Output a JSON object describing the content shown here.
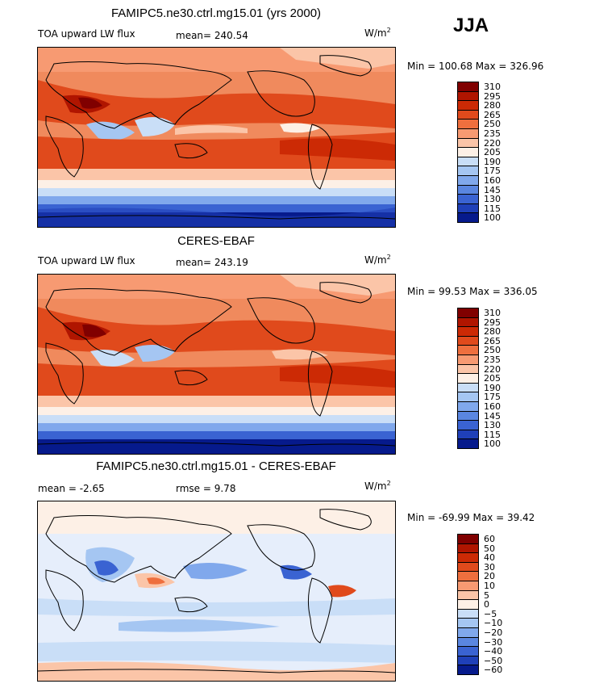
{
  "season_label": "JJA",
  "panels": [
    {
      "title": "FAMIPC5.ne30.ctrl.mg15.01 (yrs 2000)",
      "left_label": "TOA upward LW flux",
      "stat1": "mean=  240.54",
      "stat2": "",
      "units": "W/m",
      "units_sup": "2",
      "minmax": "Min = 100.68  Max = 326.96",
      "levels": [
        "310",
        "295",
        "280",
        "265",
        "250",
        "235",
        "220",
        "205",
        "190",
        "175",
        "160",
        "145",
        "130",
        "115",
        "100"
      ],
      "colors": [
        "#800000",
        "#b01500",
        "#cc2a05",
        "#e04a1c",
        "#ee6f3e",
        "#f79a72",
        "#fbc5a8",
        "#fdf0e6",
        "#c9def7",
        "#a5c6f2",
        "#80a8ec",
        "#5a86e0",
        "#3a63d2",
        "#1f40b8",
        "#061a8c"
      ]
    },
    {
      "title": "CERES-EBAF",
      "left_label": "TOA upward LW flux",
      "stat1": "mean=  243.19",
      "stat2": "",
      "units": "W/m",
      "units_sup": "2",
      "minmax": "Min =  99.53  Max = 336.05",
      "levels": [
        "310",
        "295",
        "280",
        "265",
        "250",
        "235",
        "220",
        "205",
        "190",
        "175",
        "160",
        "145",
        "130",
        "115",
        "100"
      ],
      "colors": [
        "#800000",
        "#b01500",
        "#cc2a05",
        "#e04a1c",
        "#ee6f3e",
        "#f79a72",
        "#fbc5a8",
        "#fdf0e6",
        "#c9def7",
        "#a5c6f2",
        "#80a8ec",
        "#5a86e0",
        "#3a63d2",
        "#1f40b8",
        "#061a8c"
      ]
    },
    {
      "title": "FAMIPC5.ne30.ctrl.mg15.01 - CERES-EBAF",
      "left_label": "mean =   -2.65",
      "stat1": "rmse =    9.78",
      "stat2": "",
      "units": "W/m",
      "units_sup": "2",
      "minmax": "Min = -69.99  Max =  39.42",
      "levels": [
        "60",
        "50",
        "40",
        "30",
        "20",
        "10",
        "5",
        "0",
        "−5",
        "−10",
        "−20",
        "−30",
        "−40",
        "−50",
        "−60"
      ],
      "colors": [
        "#800000",
        "#b01500",
        "#cc2a05",
        "#e04a1c",
        "#ee6f3e",
        "#f79a72",
        "#fbc5a8",
        "#fdf0e6",
        "#c9def7",
        "#a5c6f2",
        "#80a8ec",
        "#5a86e0",
        "#3a63d2",
        "#1f40b8",
        "#061a8c"
      ]
    }
  ]
}
